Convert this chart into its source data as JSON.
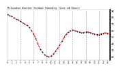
{
  "title": "Milwaukee Weather Outdoor Humidity (Last 24 Hours)",
  "y_values": [
    85,
    83,
    82,
    80,
    78,
    76,
    74,
    72,
    70,
    68,
    65,
    60,
    55,
    48,
    40,
    32,
    27,
    23,
    21,
    20,
    21,
    24,
    28,
    33,
    38,
    44,
    50,
    55,
    58,
    60,
    61,
    60,
    59,
    58,
    57,
    57,
    58,
    58,
    57,
    56,
    55,
    54,
    54,
    55,
    56,
    57,
    56,
    55
  ],
  "line_color": "#ff0000",
  "marker_color": "#111111",
  "background_color": "#ffffff",
  "grid_color": "#999999",
  "ylim": [
    15,
    92
  ],
  "yticks": [
    20,
    30,
    40,
    50,
    60,
    70,
    80,
    90
  ],
  "vgrid_every": 6,
  "n_points": 48,
  "x_tick_every": 2
}
